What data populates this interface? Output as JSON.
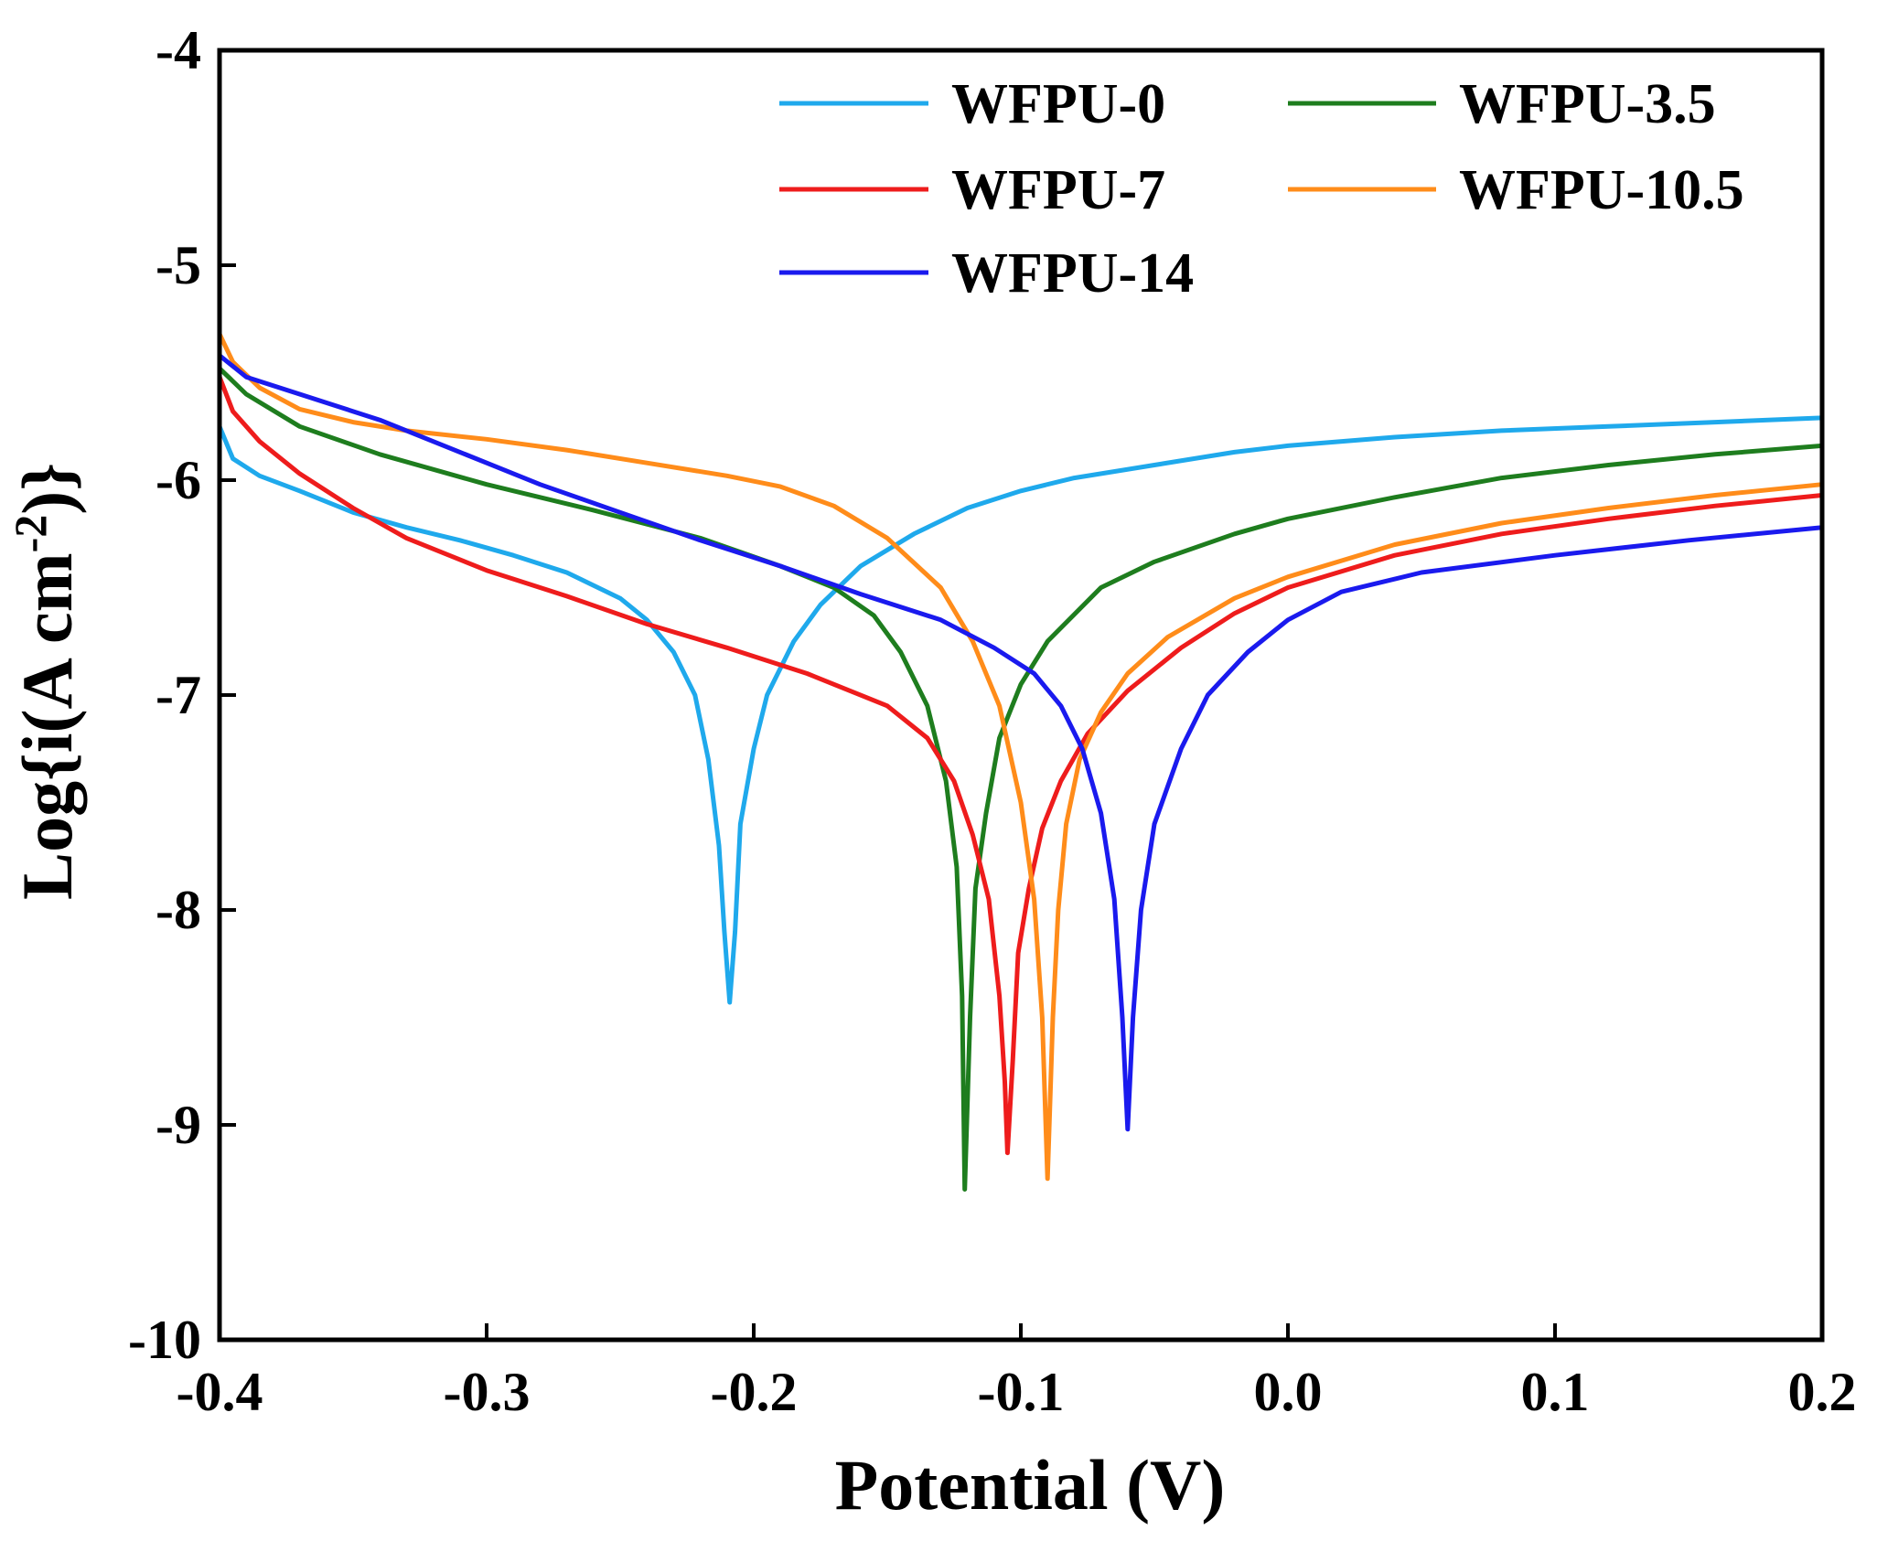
{
  "chart_data": {
    "type": "line",
    "title": "",
    "xlabel": "Potential (V)",
    "ylabel_prefix": "Log{i(A cm",
    "ylabel_sup": "-2",
    "ylabel_suffix": ")}",
    "xlim": [
      -0.4,
      0.2
    ],
    "ylim": [
      -10,
      -4
    ],
    "xticks": [
      -0.4,
      -0.3,
      -0.2,
      -0.1,
      0.0,
      0.1,
      0.2
    ],
    "xtick_labels": [
      "-0.4",
      "-0.3",
      "-0.2",
      "-0.1",
      "0.0",
      "0.1",
      "0.2"
    ],
    "yticks": [
      -10,
      -9,
      -8,
      -7,
      -6,
      -5,
      -4
    ],
    "ytick_labels": [
      "-10",
      "-9",
      "-8",
      "-7",
      "-6",
      "-5",
      "-4"
    ],
    "legend_position": "top-right",
    "series": [
      {
        "name": "WFPU-0",
        "color": "#1fa9ec",
        "points": [
          [
            -0.4,
            -5.75
          ],
          [
            -0.395,
            -5.9
          ],
          [
            -0.385,
            -5.98
          ],
          [
            -0.37,
            -6.05
          ],
          [
            -0.35,
            -6.15
          ],
          [
            -0.33,
            -6.22
          ],
          [
            -0.31,
            -6.28
          ],
          [
            -0.29,
            -6.35
          ],
          [
            -0.27,
            -6.43
          ],
          [
            -0.25,
            -6.55
          ],
          [
            -0.24,
            -6.65
          ],
          [
            -0.23,
            -6.8
          ],
          [
            -0.222,
            -7.0
          ],
          [
            -0.217,
            -7.3
          ],
          [
            -0.213,
            -7.7
          ],
          [
            -0.211,
            -8.1
          ],
          [
            -0.209,
            -8.43
          ],
          [
            -0.207,
            -8.1
          ],
          [
            -0.205,
            -7.6
          ],
          [
            -0.2,
            -7.25
          ],
          [
            -0.195,
            -7.0
          ],
          [
            -0.185,
            -6.75
          ],
          [
            -0.175,
            -6.58
          ],
          [
            -0.16,
            -6.4
          ],
          [
            -0.14,
            -6.25
          ],
          [
            -0.12,
            -6.13
          ],
          [
            -0.1,
            -6.05
          ],
          [
            -0.08,
            -5.99
          ],
          [
            -0.05,
            -5.93
          ],
          [
            -0.02,
            -5.87
          ],
          [
            0.0,
            -5.84
          ],
          [
            0.04,
            -5.8
          ],
          [
            0.08,
            -5.77
          ],
          [
            0.12,
            -5.75
          ],
          [
            0.16,
            -5.73
          ],
          [
            0.2,
            -5.71
          ]
        ]
      },
      {
        "name": "WFPU-3.5",
        "color": "#1e7d1e",
        "points": [
          [
            -0.4,
            -5.48
          ],
          [
            -0.39,
            -5.6
          ],
          [
            -0.37,
            -5.75
          ],
          [
            -0.34,
            -5.88
          ],
          [
            -0.3,
            -6.02
          ],
          [
            -0.26,
            -6.14
          ],
          [
            -0.22,
            -6.27
          ],
          [
            -0.19,
            -6.4
          ],
          [
            -0.17,
            -6.5
          ],
          [
            -0.155,
            -6.63
          ],
          [
            -0.145,
            -6.8
          ],
          [
            -0.135,
            -7.05
          ],
          [
            -0.128,
            -7.4
          ],
          [
            -0.124,
            -7.8
          ],
          [
            -0.122,
            -8.4
          ],
          [
            -0.121,
            -9.3
          ],
          [
            -0.119,
            -8.5
          ],
          [
            -0.117,
            -7.9
          ],
          [
            -0.113,
            -7.55
          ],
          [
            -0.108,
            -7.2
          ],
          [
            -0.1,
            -6.95
          ],
          [
            -0.09,
            -6.75
          ],
          [
            -0.07,
            -6.5
          ],
          [
            -0.05,
            -6.38
          ],
          [
            -0.02,
            -6.25
          ],
          [
            0.0,
            -6.18
          ],
          [
            0.04,
            -6.08
          ],
          [
            0.08,
            -5.99
          ],
          [
            0.12,
            -5.93
          ],
          [
            0.16,
            -5.88
          ],
          [
            0.2,
            -5.84
          ]
        ]
      },
      {
        "name": "WFPU-7",
        "color": "#ee1c1c",
        "points": [
          [
            -0.4,
            -5.52
          ],
          [
            -0.395,
            -5.68
          ],
          [
            -0.385,
            -5.82
          ],
          [
            -0.37,
            -5.97
          ],
          [
            -0.35,
            -6.13
          ],
          [
            -0.33,
            -6.27
          ],
          [
            -0.3,
            -6.42
          ],
          [
            -0.27,
            -6.54
          ],
          [
            -0.24,
            -6.67
          ],
          [
            -0.21,
            -6.78
          ],
          [
            -0.18,
            -6.9
          ],
          [
            -0.15,
            -7.05
          ],
          [
            -0.135,
            -7.2
          ],
          [
            -0.125,
            -7.4
          ],
          [
            -0.118,
            -7.65
          ],
          [
            -0.112,
            -7.95
          ],
          [
            -0.108,
            -8.4
          ],
          [
            -0.106,
            -8.8
          ],
          [
            -0.105,
            -9.13
          ],
          [
            -0.103,
            -8.7
          ],
          [
            -0.101,
            -8.2
          ],
          [
            -0.097,
            -7.9
          ],
          [
            -0.092,
            -7.62
          ],
          [
            -0.085,
            -7.4
          ],
          [
            -0.075,
            -7.18
          ],
          [
            -0.06,
            -6.98
          ],
          [
            -0.04,
            -6.78
          ],
          [
            -0.02,
            -6.62
          ],
          [
            0.0,
            -6.5
          ],
          [
            0.04,
            -6.35
          ],
          [
            0.08,
            -6.25
          ],
          [
            0.12,
            -6.18
          ],
          [
            0.16,
            -6.12
          ],
          [
            0.2,
            -6.07
          ]
        ]
      },
      {
        "name": "WFPU-10.5",
        "color": "#ff8c1a",
        "points": [
          [
            -0.4,
            -5.32
          ],
          [
            -0.395,
            -5.45
          ],
          [
            -0.385,
            -5.57
          ],
          [
            -0.37,
            -5.67
          ],
          [
            -0.35,
            -5.73
          ],
          [
            -0.33,
            -5.77
          ],
          [
            -0.3,
            -5.81
          ],
          [
            -0.27,
            -5.86
          ],
          [
            -0.24,
            -5.92
          ],
          [
            -0.21,
            -5.98
          ],
          [
            -0.19,
            -6.03
          ],
          [
            -0.17,
            -6.12
          ],
          [
            -0.15,
            -6.27
          ],
          [
            -0.13,
            -6.5
          ],
          [
            -0.118,
            -6.75
          ],
          [
            -0.108,
            -7.05
          ],
          [
            -0.1,
            -7.5
          ],
          [
            -0.095,
            -7.95
          ],
          [
            -0.092,
            -8.5
          ],
          [
            -0.09,
            -9.25
          ],
          [
            -0.088,
            -8.5
          ],
          [
            -0.086,
            -8.0
          ],
          [
            -0.083,
            -7.6
          ],
          [
            -0.078,
            -7.3
          ],
          [
            -0.07,
            -7.08
          ],
          [
            -0.06,
            -6.9
          ],
          [
            -0.045,
            -6.73
          ],
          [
            -0.02,
            -6.55
          ],
          [
            0.0,
            -6.45
          ],
          [
            0.04,
            -6.3
          ],
          [
            0.08,
            -6.2
          ],
          [
            0.12,
            -6.13
          ],
          [
            0.16,
            -6.07
          ],
          [
            0.2,
            -6.02
          ]
        ]
      },
      {
        "name": "WFPU-14",
        "color": "#1a1aee",
        "points": [
          [
            -0.4,
            -5.42
          ],
          [
            -0.39,
            -5.52
          ],
          [
            -0.37,
            -5.6
          ],
          [
            -0.34,
            -5.72
          ],
          [
            -0.31,
            -5.87
          ],
          [
            -0.28,
            -6.02
          ],
          [
            -0.25,
            -6.15
          ],
          [
            -0.22,
            -6.28
          ],
          [
            -0.19,
            -6.4
          ],
          [
            -0.16,
            -6.53
          ],
          [
            -0.13,
            -6.65
          ],
          [
            -0.11,
            -6.78
          ],
          [
            -0.095,
            -6.9
          ],
          [
            -0.085,
            -7.05
          ],
          [
            -0.077,
            -7.25
          ],
          [
            -0.07,
            -7.55
          ],
          [
            -0.065,
            -7.95
          ],
          [
            -0.062,
            -8.5
          ],
          [
            -0.06,
            -9.02
          ],
          [
            -0.058,
            -8.5
          ],
          [
            -0.055,
            -8.0
          ],
          [
            -0.05,
            -7.6
          ],
          [
            -0.04,
            -7.25
          ],
          [
            -0.03,
            -7.0
          ],
          [
            -0.015,
            -6.8
          ],
          [
            0.0,
            -6.65
          ],
          [
            0.02,
            -6.52
          ],
          [
            0.05,
            -6.43
          ],
          [
            0.1,
            -6.35
          ],
          [
            0.15,
            -6.28
          ],
          [
            0.2,
            -6.22
          ]
        ]
      }
    ]
  }
}
